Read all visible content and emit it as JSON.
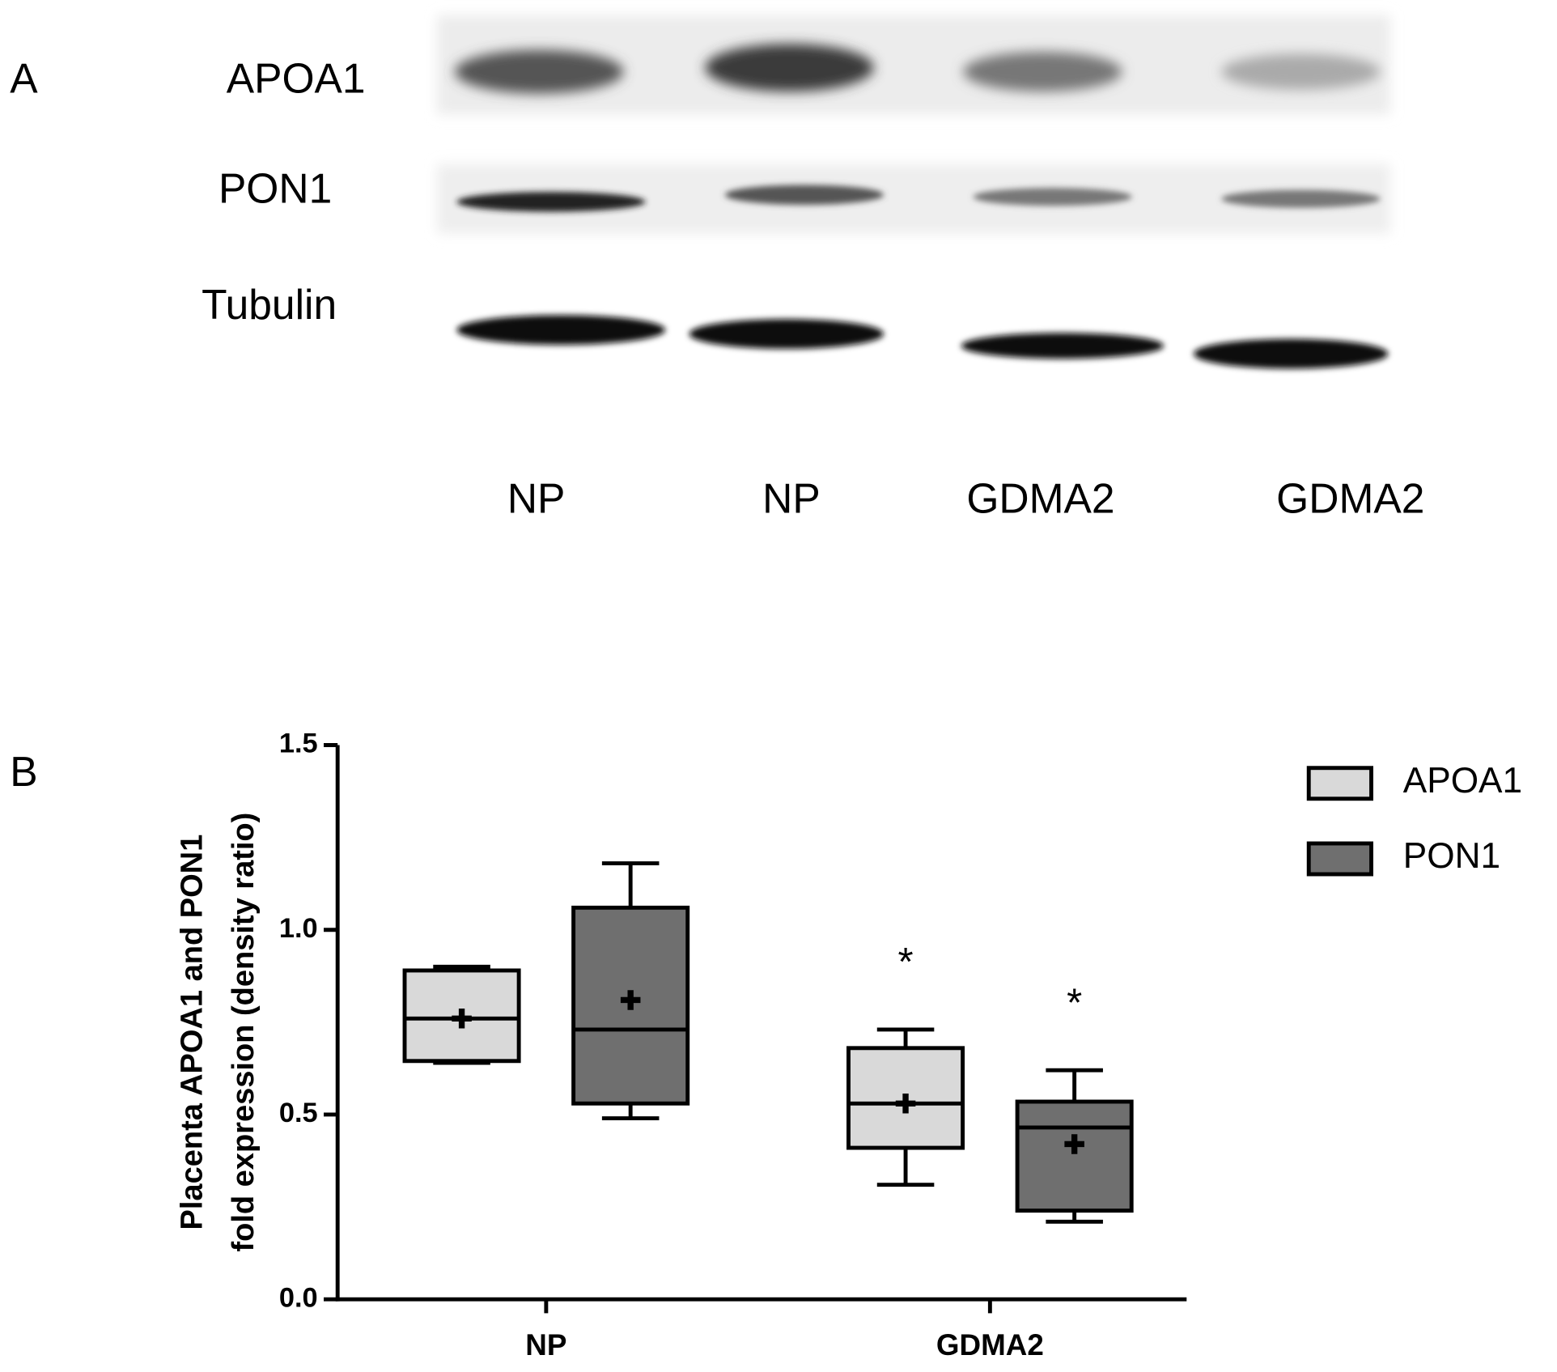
{
  "panel_a": {
    "label": "A",
    "rows": [
      "APOA1",
      "PON1",
      "Tubulin"
    ],
    "lanes": [
      "NP",
      "NP",
      "GDMA2",
      "GDMA2"
    ]
  },
  "panel_b_label": "B",
  "chart_data": {
    "type": "box",
    "ylabel": [
      "Placenta APOA1 and PON1",
      "fold expression (density ratio)"
    ],
    "categories": [
      "NP",
      "GDMA2"
    ],
    "ylim": [
      0,
      1.5
    ],
    "yticks": [
      {
        "value": 0,
        "label": "0.0"
      },
      {
        "value": 0.5,
        "label": "0.5"
      },
      {
        "value": 1,
        "label": "1.0"
      },
      {
        "value": 1.5,
        "label": "1.5"
      }
    ],
    "legend": "right",
    "series": [
      {
        "name": "APOA1",
        "color": "#d9d9d9",
        "min": [
          0.64,
          0.31
        ],
        "q1": [
          0.645,
          0.41
        ],
        "median": [
          0.76,
          0.53
        ],
        "q3": [
          0.89,
          0.68
        ],
        "max": [
          0.9,
          0.73
        ],
        "mean": [
          0.76,
          0.53
        ],
        "significance": [
          null,
          "*"
        ]
      },
      {
        "name": "PON1",
        "color": "#6f6f6f",
        "min": [
          0.49,
          0.21
        ],
        "q1": [
          0.53,
          0.24
        ],
        "median": [
          0.73,
          0.465
        ],
        "q3": [
          1.06,
          0.535
        ],
        "max": [
          1.18,
          0.62
        ],
        "mean": [
          0.81,
          0.42
        ],
        "significance": [
          null,
          "*"
        ]
      }
    ]
  }
}
